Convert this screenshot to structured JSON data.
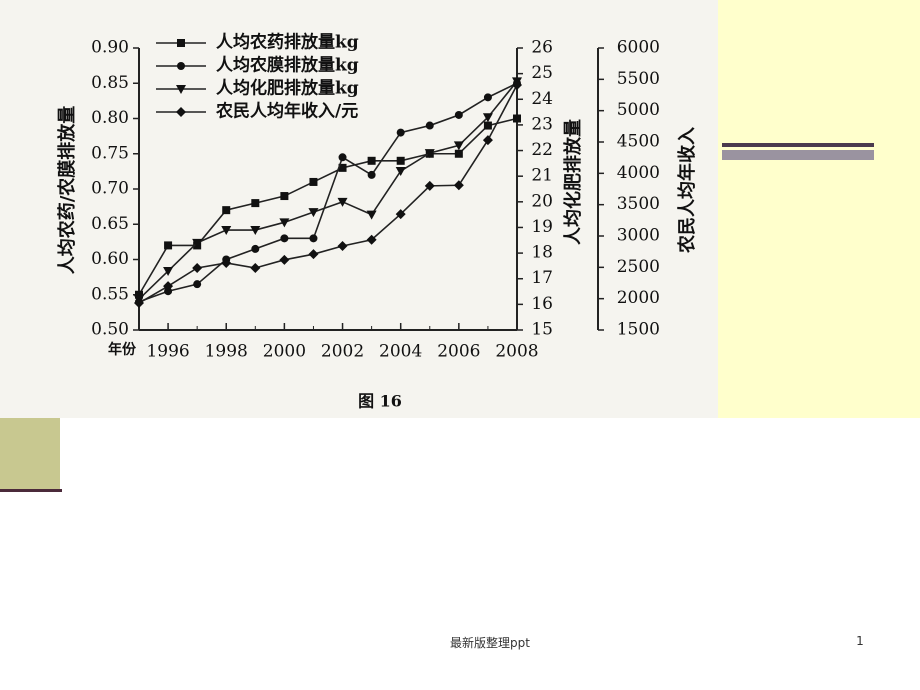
{
  "chart_data": {
    "type": "line",
    "caption": "图 16",
    "x_label": "年份",
    "y_label": "人均农药/农膜排放量",
    "y2_label": "人均化肥排放量",
    "y3_label": "农民人均年收入",
    "x": [
      1995,
      1996,
      1997,
      1998,
      1999,
      2000,
      2001,
      2002,
      2003,
      2004,
      2005,
      2006,
      2007,
      2008
    ],
    "xlim": [
      1995,
      2008
    ],
    "xticks": [
      1996,
      1998,
      2000,
      2002,
      2004,
      2006,
      2008
    ],
    "ylim": [
      0.5,
      0.9
    ],
    "yticks": [
      {
        "value": 0.5,
        "label": "0.50"
      },
      0.55,
      {
        "value": 0.6,
        "label": "0.60"
      },
      0.65,
      {
        "value": 0.7,
        "label": "0.70"
      },
      0.75,
      {
        "value": 0.8,
        "label": "0.80"
      },
      0.85,
      {
        "value": 0.9,
        "label": "0.90"
      }
    ],
    "y2lim": [
      15,
      26
    ],
    "y2ticks": [
      15,
      16,
      17,
      18,
      19,
      20,
      21,
      22,
      23,
      24,
      25,
      26
    ],
    "y3lim": [
      1500,
      6000
    ],
    "y3ticks": [
      1500,
      2000,
      2500,
      3000,
      3500,
      4000,
      4500,
      5000,
      5500,
      6000
    ],
    "series": [
      {
        "name": "人均农药排放量kg",
        "color": "#222222",
        "marker": "square",
        "values": [
          0.55,
          0.62,
          0.62,
          0.67,
          0.68,
          0.69,
          0.71,
          0.73,
          0.74,
          0.74,
          0.75,
          0.75,
          0.79,
          0.8
        ]
      },
      {
        "name": "人均农膜排放量kg",
        "color": "#222222",
        "marker": "circle",
        "values": [
          0.54,
          0.555,
          0.565,
          0.6,
          0.615,
          0.63,
          0.63,
          0.745,
          0.72,
          0.78,
          0.79,
          0.805,
          0.83,
          0.85
        ]
      },
      {
        "name": "人均化肥排放量kg",
        "color": "#222222",
        "marker": "triangle",
        "axis": "y2",
        "values": [
          16.2,
          17.3,
          18.4,
          18.9,
          18.9,
          19.2,
          19.6,
          20.0,
          19.5,
          21.2,
          21.9,
          22.2,
          23.3,
          24.7
        ]
      },
      {
        "name": "农民人均年收入/元",
        "color": "#222222",
        "marker": "diamond",
        "axis": "y3",
        "values": [
          1930,
          2200,
          2490,
          2570,
          2490,
          2620,
          2710,
          2840,
          2940,
          3350,
          3800,
          3810,
          4530,
          5410
        ]
      }
    ]
  },
  "footer": {
    "text": "最新版整理ppt",
    "page_number": 1
  }
}
